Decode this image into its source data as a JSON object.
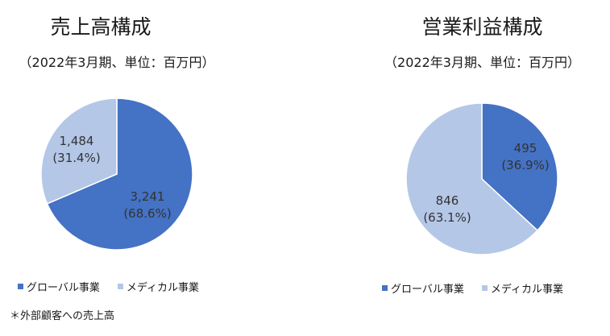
{
  "colors": {
    "global": "#4472c4",
    "medical": "#b4c7e7"
  },
  "footnote": "＊外部顧客への売上高",
  "chart_data": [
    {
      "type": "pie",
      "title": "売上高構成",
      "subtitle": "（2022年3月期、単位：百万円）",
      "legend_position": "bottom",
      "slices": [
        {
          "name": "グローバル事業",
          "value": 3241,
          "label_value": "3,241",
          "label_pct": "(68.6%)"
        },
        {
          "name": "メディカル事業",
          "value": 1484,
          "label_value": "1,484",
          "label_pct": "(31.4%)"
        }
      ]
    },
    {
      "type": "pie",
      "title": "営業利益構成",
      "subtitle": "（2022年3月期、単位：百万円）",
      "legend_position": "bottom",
      "slices": [
        {
          "name": "グローバル事業",
          "value": 495,
          "label_value": "495",
          "label_pct": "(36.9%)"
        },
        {
          "name": "メディカル事業",
          "value": 846,
          "label_value": "846",
          "label_pct": "(63.1%)"
        }
      ]
    }
  ]
}
